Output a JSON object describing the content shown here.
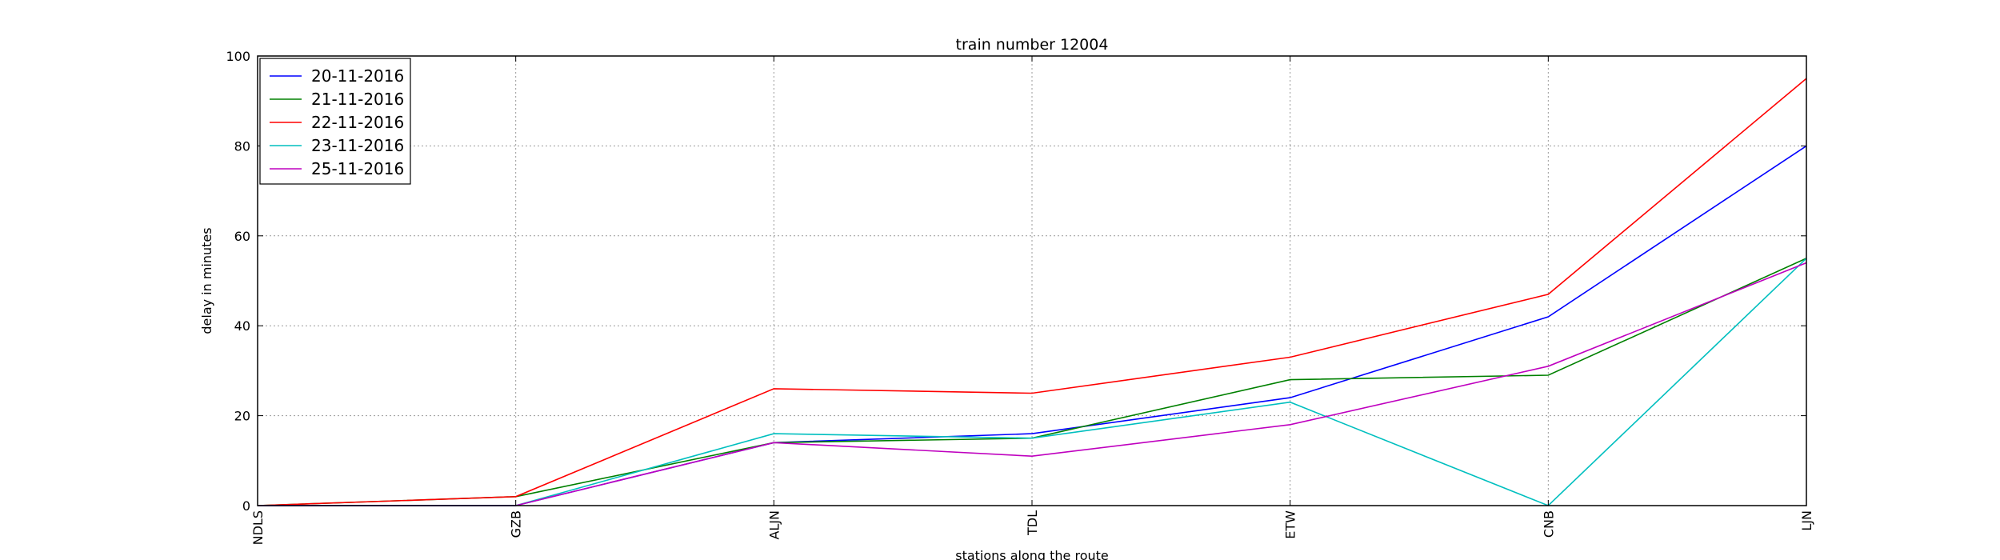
{
  "chart_data": {
    "type": "line",
    "title": "train number 12004",
    "xlabel": "stations along the route",
    "ylabel": "delay in minutes",
    "categories": [
      "NDLS",
      "GZB",
      "ALJN",
      "TDL",
      "ETW",
      "CNB",
      "LJN"
    ],
    "ylim": [
      0,
      100
    ],
    "yticks": [
      0,
      20,
      40,
      60,
      80,
      100
    ],
    "grid": true,
    "legend_position": "upper-left",
    "series": [
      {
        "name": "20-11-2016",
        "color": "#0000ff",
        "values": [
          0,
          0,
          14,
          16,
          24,
          42,
          80
        ]
      },
      {
        "name": "21-11-2016",
        "color": "#008000",
        "values": [
          0,
          2,
          14,
          15,
          28,
          29,
          55
        ]
      },
      {
        "name": "22-11-2016",
        "color": "#ff0000",
        "values": [
          0,
          2,
          26,
          25,
          33,
          47,
          95
        ]
      },
      {
        "name": "23-11-2016",
        "color": "#00bfbf",
        "values": [
          0,
          0,
          16,
          15,
          23,
          0,
          55
        ]
      },
      {
        "name": "25-11-2016",
        "color": "#bf00bf",
        "values": [
          0,
          0,
          14,
          11,
          18,
          31,
          54
        ]
      }
    ]
  }
}
